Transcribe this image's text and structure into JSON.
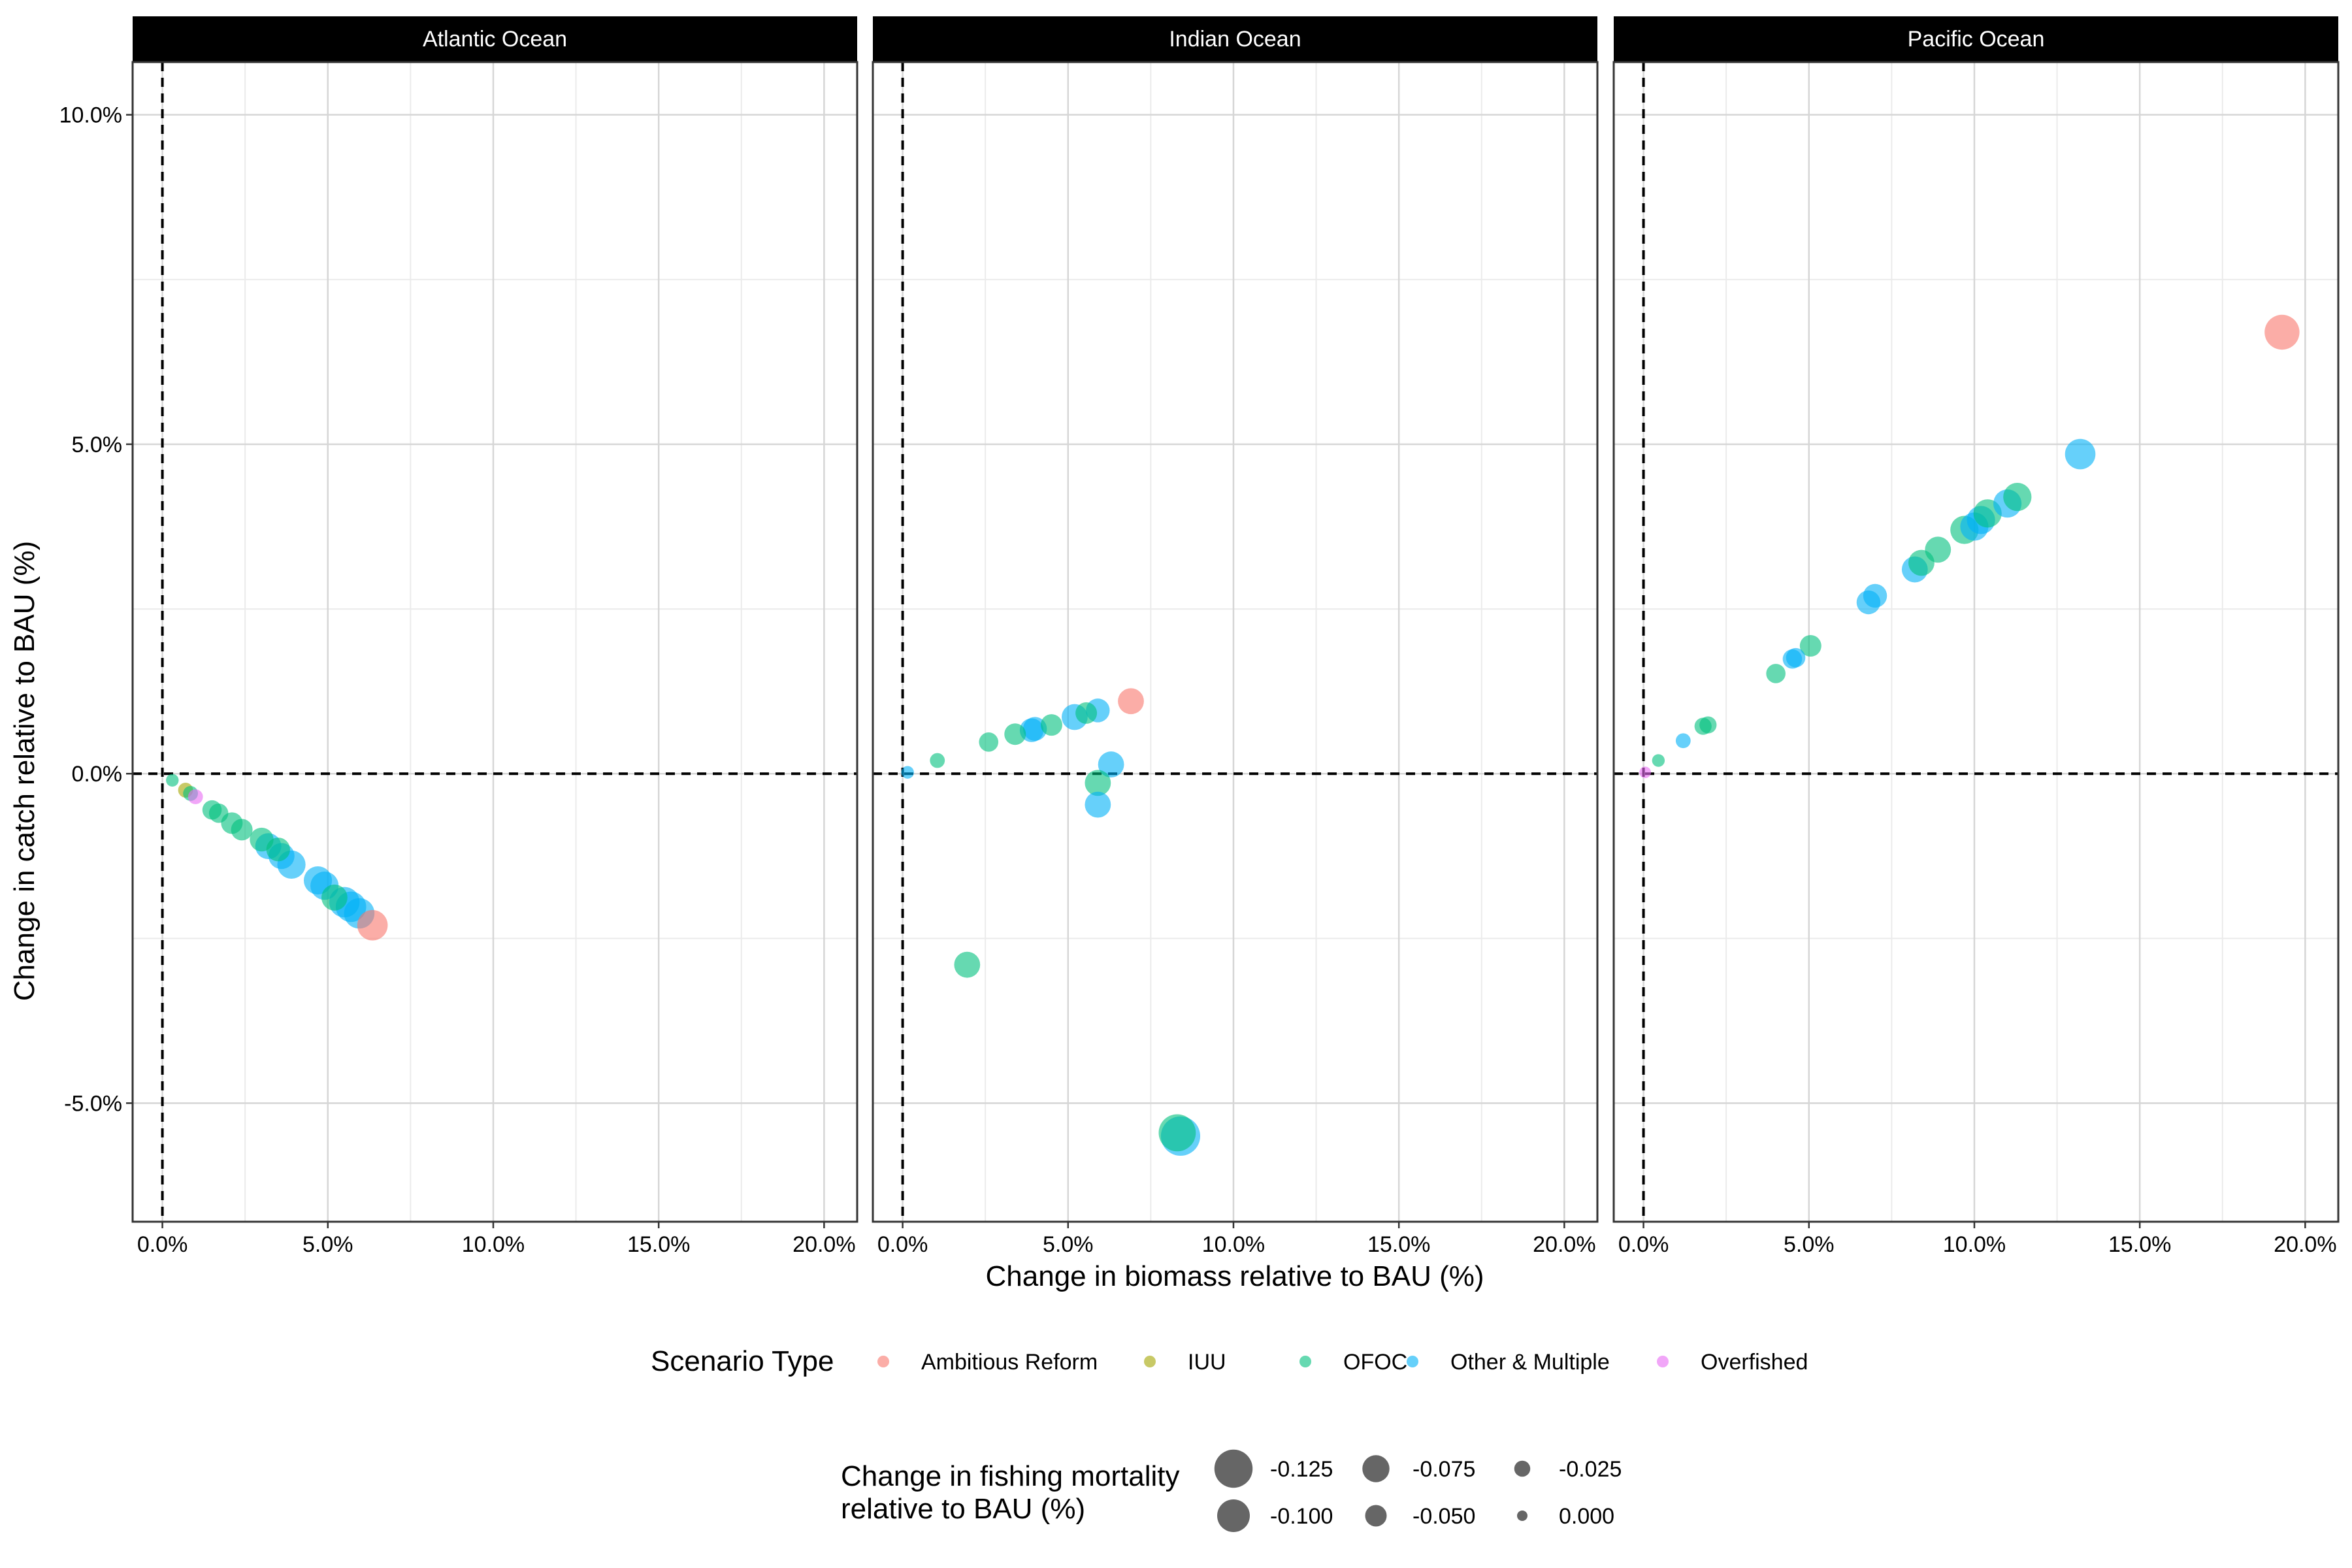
{
  "chart_data": {
    "type": "scatter",
    "facets": [
      "Atlantic Ocean",
      "Indian Ocean",
      "Pacific Ocean"
    ],
    "xlabel": "Change in biomass relative to BAU (%)",
    "ylabel": "Change in catch relative to BAU (%)",
    "xlim": [
      -0.9,
      21.0
    ],
    "ylim": [
      -6.8,
      10.8
    ],
    "x_ticks": [
      0,
      5,
      10,
      15,
      20
    ],
    "x_tick_labels": [
      "0.0%",
      "5.0%",
      "10.0%",
      "15.0%",
      "20.0%"
    ],
    "y_ticks": [
      -5,
      0,
      5,
      10
    ],
    "y_tick_labels": [
      "-5.0%",
      "0.0%",
      "5.0%",
      "10.0%"
    ],
    "grid": true,
    "reference_lines": {
      "x": 0,
      "y": 0
    },
    "legend_position": "bottom",
    "color_legend": {
      "title": "Scenario Type",
      "entries": [
        {
          "label": "Ambitious Reform",
          "color": "#F8766D"
        },
        {
          "label": "IUU",
          "color": "#A3A500"
        },
        {
          "label": "OFOC",
          "color": "#00BF7D"
        },
        {
          "label": "Other & Multiple",
          "color": "#00B0F6"
        },
        {
          "label": "Overfished",
          "color": "#E76BF3"
        }
      ]
    },
    "size_legend": {
      "title_line1": "Change in fishing mortality",
      "title_line2": "relative to BAU (%)",
      "entries": [
        {
          "label": "-0.125",
          "value": -0.125
        },
        {
          "label": "-0.100",
          "value": -0.1
        },
        {
          "label": "-0.075",
          "value": -0.075
        },
        {
          "label": "-0.050",
          "value": -0.05
        },
        {
          "label": "-0.025",
          "value": -0.025
        },
        {
          "label": "0.000",
          "value": 0.0
        }
      ]
    },
    "points": [
      {
        "facet": 0,
        "type": "OFOC",
        "x": 0.3,
        "y": -0.1,
        "f": -0.01
      },
      {
        "facet": 0,
        "type": "IUU",
        "x": 0.7,
        "y": -0.25,
        "f": -0.02
      },
      {
        "facet": 0,
        "type": "OFOC",
        "x": 0.85,
        "y": -0.3,
        "f": -0.02
      },
      {
        "facet": 0,
        "type": "Overfished",
        "x": 1.0,
        "y": -0.35,
        "f": -0.02
      },
      {
        "facet": 0,
        "type": "OFOC",
        "x": 1.5,
        "y": -0.55,
        "f": -0.04
      },
      {
        "facet": 0,
        "type": "OFOC",
        "x": 1.7,
        "y": -0.6,
        "f": -0.04
      },
      {
        "facet": 0,
        "type": "OFOC",
        "x": 2.1,
        "y": -0.75,
        "f": -0.05
      },
      {
        "facet": 0,
        "type": "OFOC",
        "x": 2.4,
        "y": -0.85,
        "f": -0.05
      },
      {
        "facet": 0,
        "type": "OFOC",
        "x": 3.0,
        "y": -1.0,
        "f": -0.06
      },
      {
        "facet": 0,
        "type": "Other & Multiple",
        "x": 3.2,
        "y": -1.1,
        "f": -0.07
      },
      {
        "facet": 0,
        "type": "OFOC",
        "x": 3.5,
        "y": -1.15,
        "f": -0.06
      },
      {
        "facet": 0,
        "type": "Other & Multiple",
        "x": 3.6,
        "y": -1.25,
        "f": -0.07
      },
      {
        "facet": 0,
        "type": "Other & Multiple",
        "x": 3.9,
        "y": -1.38,
        "f": -0.08
      },
      {
        "facet": 0,
        "type": "Other & Multiple",
        "x": 4.7,
        "y": -1.62,
        "f": -0.08
      },
      {
        "facet": 0,
        "type": "Other & Multiple",
        "x": 4.9,
        "y": -1.7,
        "f": -0.08
      },
      {
        "facet": 0,
        "type": "OFOC",
        "x": 5.2,
        "y": -1.88,
        "f": -0.07
      },
      {
        "facet": 0,
        "type": "Other & Multiple",
        "x": 5.5,
        "y": -1.95,
        "f": -0.09
      },
      {
        "facet": 0,
        "type": "Other & Multiple",
        "x": 5.7,
        "y": -2.02,
        "f": -0.09
      },
      {
        "facet": 0,
        "type": "Other & Multiple",
        "x": 5.95,
        "y": -2.12,
        "f": -0.09
      },
      {
        "facet": 0,
        "type": "Ambitious Reform",
        "x": 6.35,
        "y": -2.3,
        "f": -0.09
      },
      {
        "facet": 1,
        "type": "Other & Multiple",
        "x": 0.15,
        "y": 0.02,
        "f": -0.01
      },
      {
        "facet": 1,
        "type": "OFOC",
        "x": 1.05,
        "y": 0.2,
        "f": -0.02
      },
      {
        "facet": 1,
        "type": "OFOC",
        "x": 2.6,
        "y": 0.48,
        "f": -0.04
      },
      {
        "facet": 1,
        "type": "OFOC",
        "x": 3.4,
        "y": 0.6,
        "f": -0.05
      },
      {
        "facet": 1,
        "type": "Other & Multiple",
        "x": 3.9,
        "y": 0.66,
        "f": -0.06
      },
      {
        "facet": 1,
        "type": "Other & Multiple",
        "x": 4.0,
        "y": 0.68,
        "f": -0.06
      },
      {
        "facet": 1,
        "type": "OFOC",
        "x": 4.5,
        "y": 0.74,
        "f": -0.05
      },
      {
        "facet": 1,
        "type": "Other & Multiple",
        "x": 5.2,
        "y": 0.86,
        "f": -0.07
      },
      {
        "facet": 1,
        "type": "OFOC",
        "x": 5.55,
        "y": 0.92,
        "f": -0.05
      },
      {
        "facet": 1,
        "type": "Other & Multiple",
        "x": 5.9,
        "y": 0.96,
        "f": -0.06
      },
      {
        "facet": 1,
        "type": "Ambitious Reform",
        "x": 6.9,
        "y": 1.1,
        "f": -0.07
      },
      {
        "facet": 1,
        "type": "Other & Multiple",
        "x": 6.3,
        "y": 0.14,
        "f": -0.07
      },
      {
        "facet": 1,
        "type": "OFOC",
        "x": 5.9,
        "y": -0.14,
        "f": -0.07
      },
      {
        "facet": 1,
        "type": "Other & Multiple",
        "x": 5.9,
        "y": -0.47,
        "f": -0.07
      },
      {
        "facet": 1,
        "type": "OFOC",
        "x": 1.95,
        "y": -2.9,
        "f": -0.07
      },
      {
        "facet": 1,
        "type": "OFOC",
        "x": 8.3,
        "y": -5.45,
        "f": -0.12
      },
      {
        "facet": 1,
        "type": "Other & Multiple",
        "x": 8.4,
        "y": -5.5,
        "f": -0.13
      },
      {
        "facet": 2,
        "type": "Overfished",
        "x": 0.05,
        "y": 0.02,
        "f": -0.005
      },
      {
        "facet": 2,
        "type": "OFOC",
        "x": 0.45,
        "y": 0.2,
        "f": -0.01
      },
      {
        "facet": 2,
        "type": "Other & Multiple",
        "x": 1.2,
        "y": 0.5,
        "f": -0.02
      },
      {
        "facet": 2,
        "type": "OFOC",
        "x": 1.8,
        "y": 0.72,
        "f": -0.03
      },
      {
        "facet": 2,
        "type": "OFOC",
        "x": 1.95,
        "y": 0.74,
        "f": -0.03
      },
      {
        "facet": 2,
        "type": "OFOC",
        "x": 4.0,
        "y": 1.52,
        "f": -0.04
      },
      {
        "facet": 2,
        "type": "Other & Multiple",
        "x": 4.5,
        "y": 1.74,
        "f": -0.04
      },
      {
        "facet": 2,
        "type": "Other & Multiple",
        "x": 4.6,
        "y": 1.76,
        "f": -0.04
      },
      {
        "facet": 2,
        "type": "OFOC",
        "x": 5.05,
        "y": 1.94,
        "f": -0.05
      },
      {
        "facet": 2,
        "type": "Other & Multiple",
        "x": 6.8,
        "y": 2.6,
        "f": -0.06
      },
      {
        "facet": 2,
        "type": "Other & Multiple",
        "x": 7.0,
        "y": 2.7,
        "f": -0.06
      },
      {
        "facet": 2,
        "type": "Other & Multiple",
        "x": 8.2,
        "y": 3.1,
        "f": -0.07
      },
      {
        "facet": 2,
        "type": "OFOC",
        "x": 8.4,
        "y": 3.2,
        "f": -0.07
      },
      {
        "facet": 2,
        "type": "OFOC",
        "x": 8.9,
        "y": 3.4,
        "f": -0.07
      },
      {
        "facet": 2,
        "type": "OFOC",
        "x": 9.7,
        "y": 3.7,
        "f": -0.08
      },
      {
        "facet": 2,
        "type": "Other & Multiple",
        "x": 10.0,
        "y": 3.75,
        "f": -0.08
      },
      {
        "facet": 2,
        "type": "Other & Multiple",
        "x": 10.2,
        "y": 3.85,
        "f": -0.08
      },
      {
        "facet": 2,
        "type": "OFOC",
        "x": 10.4,
        "y": 3.95,
        "f": -0.08
      },
      {
        "facet": 2,
        "type": "Other & Multiple",
        "x": 11.0,
        "y": 4.1,
        "f": -0.08
      },
      {
        "facet": 2,
        "type": "OFOC",
        "x": 11.3,
        "y": 4.2,
        "f": -0.08
      },
      {
        "facet": 2,
        "type": "Other & Multiple",
        "x": 13.2,
        "y": 4.85,
        "f": -0.09
      },
      {
        "facet": 2,
        "type": "Ambitious Reform",
        "x": 19.3,
        "y": 6.7,
        "f": -0.11
      }
    ]
  }
}
